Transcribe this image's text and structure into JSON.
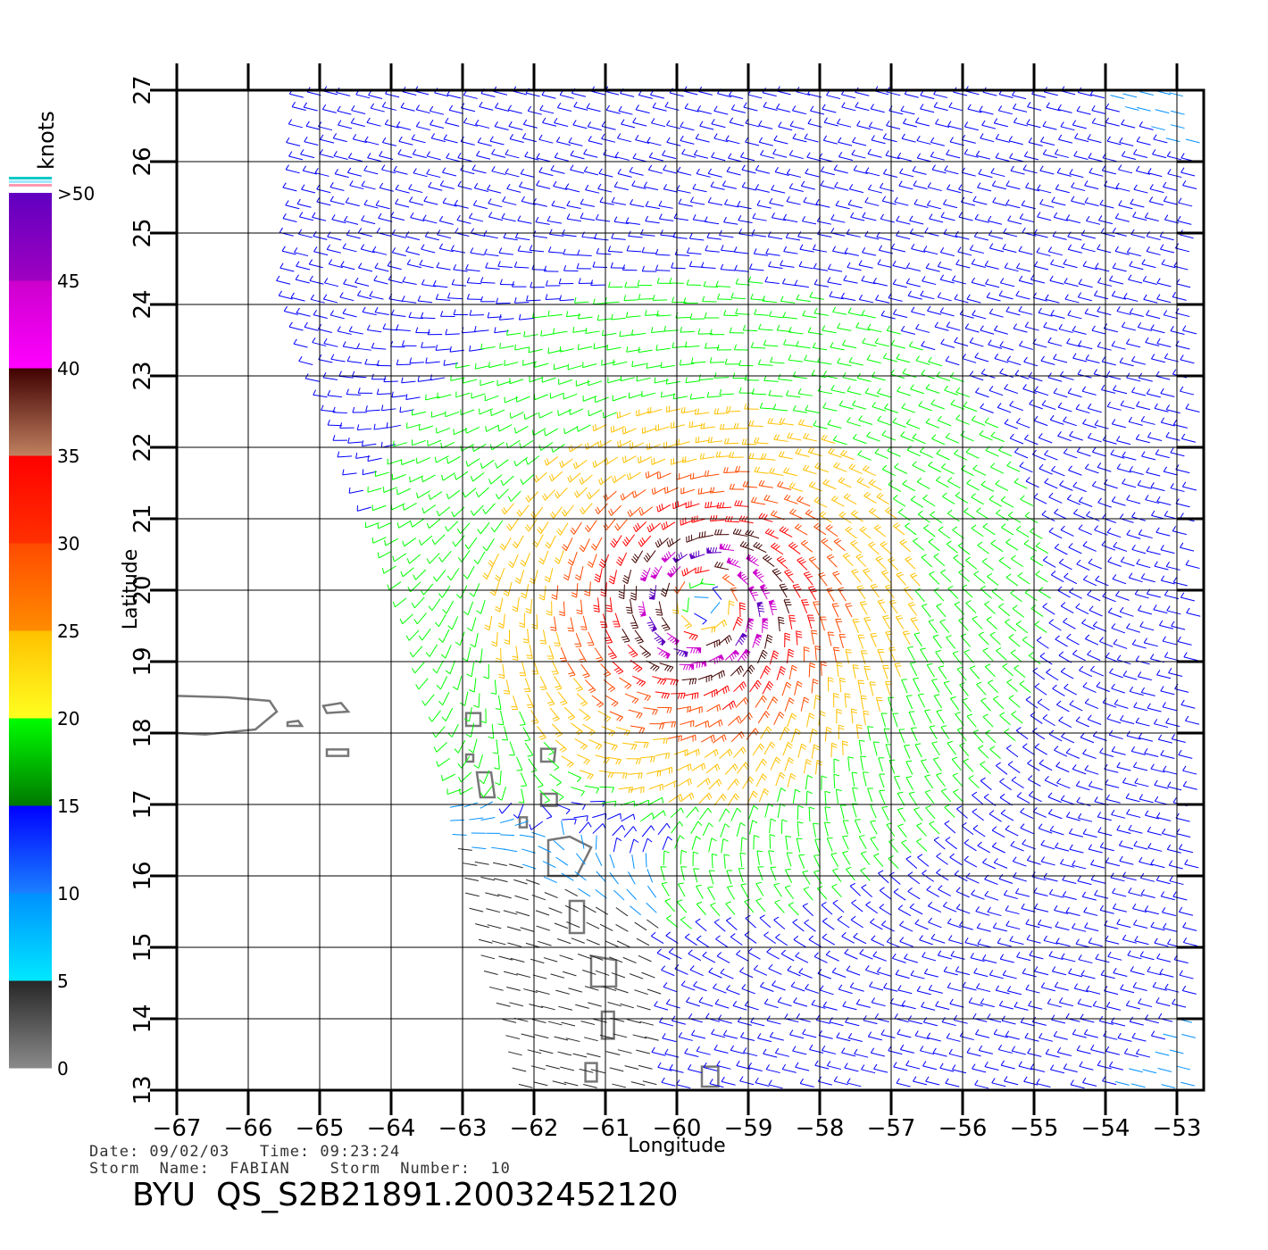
{
  "chart_data": {
    "type": "vector-field",
    "title": "",
    "xlabel": "Longitude",
    "ylabel": "Latitude",
    "xlim": [
      -67,
      -52.6
    ],
    "ylim": [
      13,
      27
    ],
    "x_ticks": [
      -67,
      -66,
      -65,
      -64,
      -63,
      -62,
      -61,
      -60,
      -59,
      -58,
      -57,
      -56,
      -55,
      -54,
      -53
    ],
    "y_ticks": [
      13,
      14,
      15,
      16,
      17,
      18,
      19,
      20,
      21,
      22,
      23,
      24,
      25,
      26,
      27
    ],
    "x_tick_labels": [
      "−67",
      "−66",
      "−65",
      "−64",
      "−63",
      "−62",
      "−61",
      "−60",
      "−59",
      "−58",
      "−57",
      "−56",
      "−55",
      "−54",
      "−53"
    ],
    "y_tick_labels": [
      "13",
      "14",
      "15",
      "16",
      "17",
      "18",
      "19",
      "20",
      "21",
      "22",
      "23",
      "24",
      "25",
      "26",
      "27"
    ],
    "grid": true,
    "storm_center": {
      "lon": -59.6,
      "lat": 19.8
    },
    "swath_west_edge": [
      [
        -65.2,
        27
      ],
      [
        -65.4,
        24
      ],
      [
        -64.6,
        22
      ],
      [
        -63.8,
        20
      ],
      [
        -63.1,
        17.5
      ],
      [
        -62.6,
        15
      ],
      [
        -62.0,
        13
      ]
    ],
    "colorbar": {
      "units": "knots",
      "ticks": [
        "0",
        "5",
        "10",
        "15",
        "20",
        "25",
        "30",
        "35",
        "40",
        "45",
        ">50"
      ],
      "bins": [
        {
          "from": 0,
          "to": 5,
          "colors": [
            "#8a8a8a",
            "#262626"
          ]
        },
        {
          "from": 5,
          "to": 10,
          "colors": [
            "#00e8ff",
            "#0090ff"
          ]
        },
        {
          "from": 10,
          "to": 15,
          "colors": [
            "#1a80ff",
            "#0000ff"
          ]
        },
        {
          "from": 15,
          "to": 20,
          "colors": [
            "#007800",
            "#00ff00"
          ]
        },
        {
          "from": 20,
          "to": 25,
          "colors": [
            "#ffff20",
            "#ffc000"
          ]
        },
        {
          "from": 25,
          "to": 30,
          "colors": [
            "#ff8c00",
            "#ff4a00"
          ]
        },
        {
          "from": 30,
          "to": 35,
          "colors": [
            "#ff3000",
            "#ff0000"
          ]
        },
        {
          "from": 35,
          "to": 40,
          "colors": [
            "#c08060",
            "#400000"
          ]
        },
        {
          "from": 40,
          "to": 45,
          "colors": [
            "#ff00ff",
            "#cc00cc"
          ]
        },
        {
          "from": 45,
          "to": 50,
          "colors": [
            "#a000c0",
            "#6000c0"
          ]
        }
      ]
    }
  },
  "footer": {
    "line1": "Date: 09/02/03   Time: 09:23:24",
    "line2": "Storm  Name:  FABIAN    Storm  Number:  10",
    "file_title": "BYU  QS_S2B21891.20032452120"
  }
}
